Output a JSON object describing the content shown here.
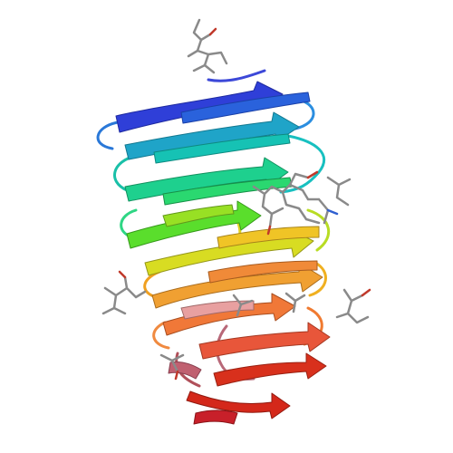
{
  "colors": {
    "background": "#ffffff",
    "ligand": "#8a8a8a",
    "ligand_highlight": "#6a6a6a",
    "oxygen": "#c0392b",
    "nitrogen": "#2f5fd0",
    "ribbon_gradient": [
      "#2a2ad6",
      "#1f6fe0",
      "#17c6b6",
      "#25d67a",
      "#5fe02a",
      "#c8e020",
      "#f0c020",
      "#f08a1c",
      "#e85a2c",
      "#d62a1a"
    ]
  }
}
